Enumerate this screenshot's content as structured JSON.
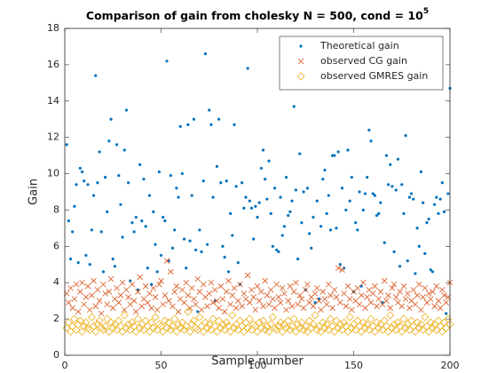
{
  "chart_data": {
    "type": "scatter",
    "title": "Comparison of gain from cholesky N = 500, cond = 10",
    "title_exponent": "5",
    "xlabel": "Sample number",
    "ylabel": "Gain",
    "xlim": [
      0,
      200
    ],
    "xticks": [
      0,
      50,
      100,
      150,
      200
    ],
    "ylim": [
      0,
      18
    ],
    "yticks": [
      0,
      2,
      4,
      6,
      8,
      10,
      12,
      14,
      16,
      18
    ],
    "legend": "northeast",
    "grid": false,
    "x": [
      1,
      2,
      3,
      4,
      5,
      6,
      7,
      8,
      9,
      10,
      11,
      12,
      13,
      14,
      15,
      16,
      17,
      18,
      19,
      20,
      21,
      22,
      23,
      24,
      25,
      26,
      27,
      28,
      29,
      30,
      31,
      32,
      33,
      34,
      35,
      36,
      37,
      38,
      39,
      40,
      41,
      42,
      43,
      44,
      45,
      46,
      47,
      48,
      49,
      50,
      51,
      52,
      53,
      54,
      55,
      56,
      57,
      58,
      59,
      60,
      61,
      62,
      63,
      64,
      65,
      66,
      67,
      68,
      69,
      70,
      71,
      72,
      73,
      74,
      75,
      76,
      77,
      78,
      79,
      80,
      81,
      82,
      83,
      84,
      85,
      86,
      87,
      88,
      89,
      90,
      91,
      92,
      93,
      94,
      95,
      96,
      97,
      98,
      99,
      100,
      101,
      102,
      103,
      104,
      105,
      106,
      107,
      108,
      109,
      110,
      111,
      112,
      113,
      114,
      115,
      116,
      117,
      118,
      119,
      120,
      121,
      122,
      123,
      124,
      125,
      126,
      127,
      128,
      129,
      130,
      131,
      132,
      133,
      134,
      135,
      136,
      137,
      138,
      139,
      140,
      141,
      142,
      143,
      144,
      145,
      146,
      147,
      148,
      149,
      150,
      151,
      152,
      153,
      154,
      155,
      156,
      157,
      158,
      159,
      160,
      161,
      162,
      163,
      164,
      165,
      166,
      167,
      168,
      169,
      170,
      171,
      172,
      173,
      174,
      175,
      176,
      177,
      178,
      179,
      180,
      181,
      182,
      183,
      184,
      185,
      186,
      187,
      188,
      189,
      190,
      191,
      192,
      193,
      194,
      195,
      196,
      197,
      198,
      199,
      200
    ],
    "series": [
      {
        "name": "Theoretical gain",
        "color": "#0072BD",
        "marker": "point",
        "values": [
          11.6,
          7.4,
          5.3,
          6.8,
          8.2,
          9.4,
          5.1,
          10.3,
          10.1,
          9.6,
          5.5,
          9.4,
          5.0,
          6.9,
          8.8,
          15.4,
          9.5,
          11.2,
          6.8,
          4.6,
          9.8,
          7.9,
          11.8,
          13.0,
          5.3,
          4.9,
          11.6,
          9.9,
          8.3,
          6.5,
          11.3,
          13.5,
          9.5,
          4.1,
          7.3,
          6.8,
          7.6,
          3.6,
          10.5,
          7.4,
          9.7,
          7.1,
          4.8,
          8.8,
          3.9,
          7.9,
          6.1,
          4.6,
          10.1,
          5.5,
          7.6,
          7.4,
          16.2,
          5.2,
          9.9,
          5.9,
          6.9,
          9.2,
          8.7,
          12.6,
          10.0,
          6.4,
          4.8,
          12.7,
          6.3,
          8.8,
          13.0,
          5.8,
          2.4,
          6.9,
          5.7,
          9.6,
          16.6,
          6.1,
          13.5,
          12.7,
          8.7,
          3.0,
          10.4,
          13.0,
          9.5,
          6.0,
          5.4,
          9.6,
          4.6,
          7.8,
          6.6,
          12.7,
          9.3,
          5.1,
          3.9,
          9.5,
          8.1,
          8.7,
          15.8,
          8.5,
          8.1,
          6.4,
          8.2,
          7.6,
          8.4,
          10.3,
          11.3,
          9.7,
          8.6,
          10.7,
          7.8,
          6.0,
          9.2,
          5.8,
          5.7,
          8.7,
          6.6,
          7.1,
          9.8,
          7.7,
          7.9,
          8.5,
          13.7,
          9.1,
          5.3,
          11.1,
          7.3,
          9.0,
          3.6,
          9.2,
          6.7,
          5.9,
          7.6,
          2.9,
          8.5,
          3.1,
          7.1,
          9.7,
          10.2,
          7.8,
          8.8,
          6.9,
          11.0,
          11.0,
          7.0,
          11.2,
          5.0,
          9.2,
          4.8,
          8.0,
          11.3,
          8.5,
          9.8,
          3.5,
          7.3,
          6.9,
          9.0,
          3.8,
          8.0,
          8.9,
          9.8,
          12.4,
          11.8,
          8.9,
          8.8,
          7.7,
          7.8,
          8.4,
          2.9,
          6.2,
          11.0,
          9.4,
          10.5,
          9.3,
          5.7,
          9.1,
          10.8,
          4.9,
          9.4,
          7.8,
          12.1,
          5.2,
          8.7,
          8.9,
          8.6,
          4.5,
          7.0,
          6.0,
          10.1,
          8.4,
          5.6,
          7.3,
          7.5,
          4.7,
          4.6,
          8.3,
          8.7,
          7.8,
          8.6,
          9.5,
          7.9,
          2.3,
          8.9,
          14.7
        ]
      },
      {
        "name": "observed CG gain",
        "color": "#D95319",
        "marker": "x",
        "values": [
          3.4,
          2.9,
          3.7,
          2.6,
          3.1,
          3.9,
          2.4,
          3.5,
          4.0,
          2.8,
          3.2,
          3.8,
          2.5,
          3.3,
          4.1,
          2.7,
          3.6,
          3.0,
          2.3,
          3.9,
          3.4,
          2.8,
          3.5,
          4.2,
          2.6,
          3.1,
          3.7,
          2.9,
          3.3,
          4.0,
          2.5,
          3.6,
          3.2,
          2.8,
          3.9,
          3.0,
          2.4,
          3.5,
          4.3,
          2.7,
          3.1,
          3.8,
          2.9,
          3.4,
          2.6,
          3.7,
          3.2,
          2.5,
          3.9,
          4.1,
          2.8,
          3.3,
          5.2,
          3.0,
          4.6,
          2.7,
          3.5,
          3.8,
          2.4,
          3.1,
          3.6,
          2.9,
          4.0,
          3.3,
          2.6,
          3.7,
          3.1,
          2.8,
          4.2,
          3.5,
          2.5,
          3.9,
          3.2,
          2.7,
          3.4,
          4.0,
          2.9,
          3.6,
          3.0,
          2.6,
          3.8,
          3.1,
          2.4,
          3.5,
          4.1,
          2.8,
          3.3,
          3.7,
          2.6,
          3.0,
          3.9,
          2.7,
          3.4,
          3.1,
          4.4,
          2.9,
          3.6,
          3.2,
          2.5,
          3.8,
          3.0,
          3.5,
          2.7,
          4.1,
          3.3,
          2.8,
          3.6,
          3.1,
          2.6,
          3.9,
          3.2,
          2.9,
          3.7,
          3.4,
          2.5,
          3.0,
          3.8,
          2.7,
          3.5,
          4.0,
          2.8,
          3.3,
          3.1,
          2.6,
          3.6,
          3.9,
          2.9,
          3.2,
          2.7,
          3.4,
          3.7,
          3.0,
          2.5,
          3.5,
          3.1,
          2.8,
          3.9,
          3.3,
          2.6,
          3.6,
          3.2,
          4.8,
          2.9,
          4.7,
          3.4,
          2.7,
          3.8,
          3.1,
          2.5,
          3.5,
          3.0,
          3.7,
          2.8,
          3.3,
          4.0,
          2.6,
          3.2,
          3.6,
          2.9,
          3.4,
          3.8,
          2.7,
          3.1,
          3.5,
          2.8,
          4.1,
          3.0,
          3.3,
          2.6,
          3.7,
          3.9,
          3.2,
          2.9,
          3.5,
          2.7,
          3.8,
          3.1,
          3.4,
          2.6,
          3.0,
          3.6,
          2.8,
          3.3,
          3.9,
          2.5,
          3.2,
          3.7,
          2.9,
          3.4,
          3.1,
          3.5,
          2.7,
          3.8,
          3.0,
          2.6,
          3.6,
          3.3,
          2.9,
          3.2,
          4.0
        ]
      },
      {
        "name": "observed GMRES gain",
        "color": "#EDB120",
        "marker": "diamond",
        "values": [
          1.5,
          1.8,
          1.3,
          1.6,
          2.0,
          1.4,
          1.7,
          1.9,
          1.3,
          1.6,
          1.8,
          1.5,
          1.4,
          2.1,
          1.6,
          1.3,
          1.7,
          1.9,
          1.5,
          1.4,
          1.6,
          2.0,
          1.3,
          1.8,
          1.5,
          1.7,
          1.4,
          1.9,
          1.6,
          1.3,
          2.2,
          1.5,
          1.7,
          1.4,
          1.8,
          1.6,
          1.3,
          2.0,
          1.5,
          1.7,
          1.4,
          1.9,
          1.6,
          1.3,
          1.8,
          1.5,
          2.1,
          1.4,
          1.7,
          1.6,
          1.3,
          1.9,
          1.5,
          1.8,
          1.4,
          1.6,
          2.0,
          1.3,
          1.7,
          1.5,
          1.8,
          1.4,
          1.6,
          2.4,
          1.3,
          1.7,
          1.9,
          1.5,
          1.4,
          2.1,
          1.6,
          1.3,
          1.8,
          1.5,
          1.7,
          1.4,
          2.0,
          1.6,
          1.3,
          1.9,
          1.5,
          1.7,
          1.4,
          1.8,
          1.6,
          1.3,
          2.2,
          1.5,
          1.7,
          1.4,
          1.9,
          1.6,
          1.3,
          1.8,
          1.5,
          2.0,
          1.4,
          1.7,
          1.6,
          1.3,
          1.8,
          1.5,
          1.9,
          1.4,
          1.6,
          1.3,
          1.7,
          2.1,
          1.5,
          1.4,
          1.6,
          1.8,
          1.3,
          1.7,
          1.5,
          1.9,
          1.4,
          1.6,
          2.0,
          1.3,
          1.7,
          1.5,
          1.8,
          1.4,
          1.6,
          1.3,
          1.9,
          1.5,
          1.7,
          2.2,
          1.4,
          1.6,
          1.3,
          1.8,
          1.5,
          1.7,
          1.4,
          2.0,
          1.6,
          1.3,
          1.9,
          1.5,
          1.7,
          1.4,
          1.8,
          1.6,
          1.3,
          2.1,
          1.5,
          1.7,
          1.4,
          1.9,
          1.6,
          1.3,
          1.8,
          1.5,
          1.7,
          1.4,
          2.0,
          1.6,
          1.3,
          1.8,
          1.5,
          1.7,
          1.4,
          1.9,
          1.6,
          1.3,
          2.2,
          1.5,
          1.7,
          1.4,
          1.8,
          1.6,
          1.3,
          2.0,
          1.5,
          1.7,
          1.4,
          1.9,
          1.6,
          1.3,
          1.8,
          1.5,
          1.7,
          1.4,
          2.1,
          1.6,
          1.3,
          1.8,
          1.5,
          1.7,
          1.4,
          1.9,
          1.6,
          1.3,
          1.8,
          1.5,
          2.0,
          1.7
        ]
      }
    ]
  }
}
